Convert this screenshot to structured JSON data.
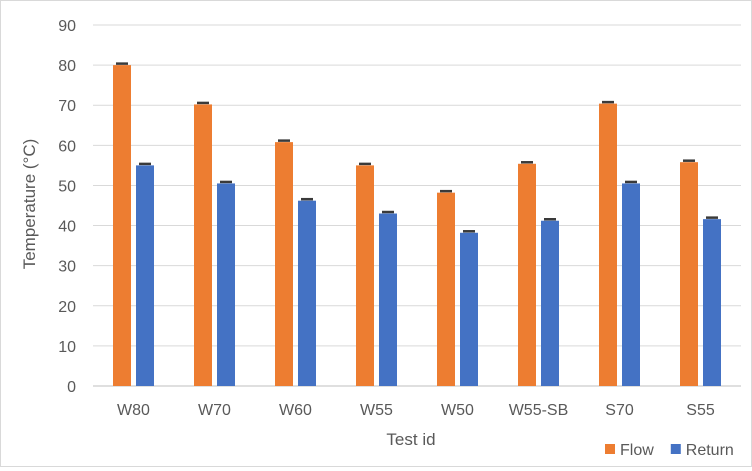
{
  "chart_data": {
    "type": "bar",
    "xlabel": "Test id",
    "ylabel": "Temperature (°C)",
    "ylim": [
      0,
      90
    ],
    "yticks": [
      0,
      10,
      20,
      30,
      40,
      50,
      60,
      70,
      80,
      90
    ],
    "categories": [
      "W80",
      "W70",
      "W60",
      "W55",
      "W50",
      "W55-SB",
      "S70",
      "S55"
    ],
    "series": [
      {
        "name": "Flow",
        "color": "#ED7D31",
        "values": [
          80.0,
          70.2,
          60.8,
          55.0,
          48.2,
          55.4,
          70.4,
          55.8
        ]
      },
      {
        "name": "Return",
        "color": "#4472C4",
        "values": [
          55.0,
          50.5,
          46.2,
          43.0,
          38.2,
          41.2,
          50.5,
          41.6
        ]
      }
    ],
    "error_bars": true,
    "grid": true,
    "legend_position": "bottom-right"
  }
}
